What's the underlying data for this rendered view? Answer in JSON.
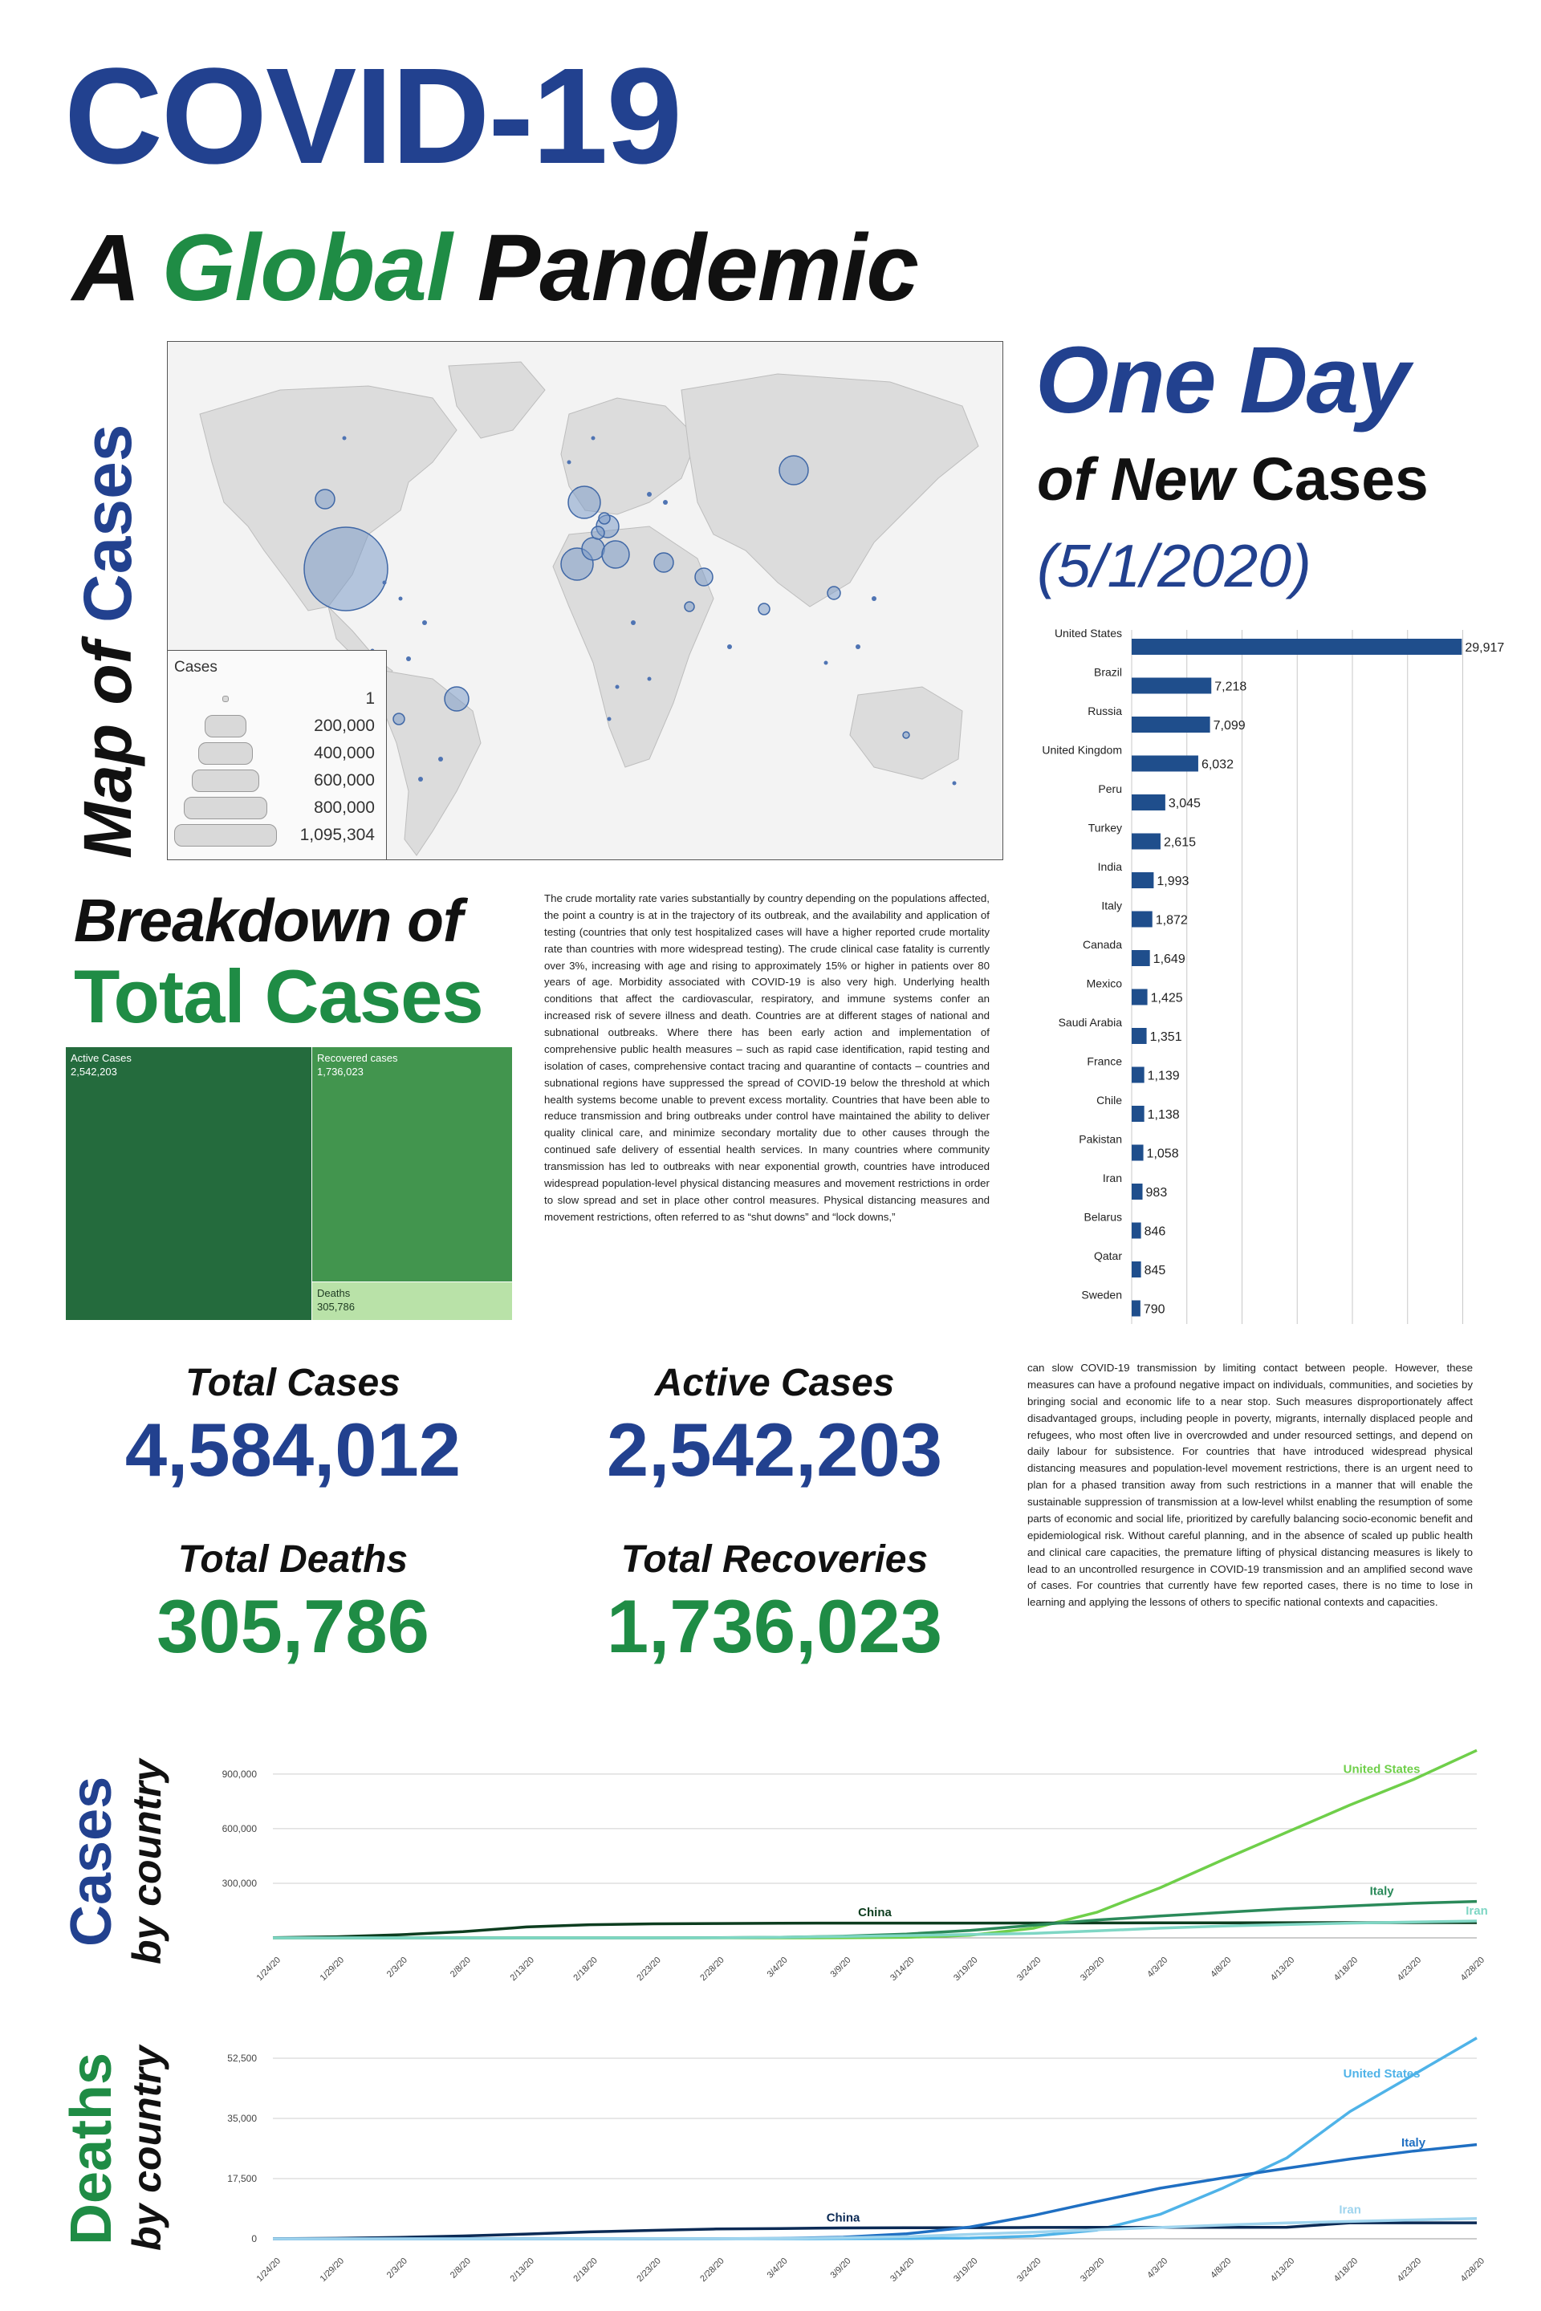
{
  "title": "COVID-19",
  "subtitle": {
    "part1": "A",
    "part2": "Global",
    "part3": "Pandemic"
  },
  "map_section": {
    "label_part1": "Map",
    "label_part2": "of",
    "label_part3": "Cases",
    "legend": {
      "title": "Cases",
      "entries": [
        "1",
        "200,000",
        "400,000",
        "600,000",
        "800,000",
        "1,095,304"
      ]
    }
  },
  "one_day": {
    "title": "One Day",
    "sub_italic": "of New",
    "sub_normal": "Cases",
    "date": "(5/1/2020)"
  },
  "breakdown": {
    "title_line1": "Breakdown of",
    "title_line2": "Total Cases",
    "treemap": [
      {
        "label": "Active Cases",
        "value": "2,542,203",
        "color": "#246b3d"
      },
      {
        "label": "Recovered cases",
        "value": "1,736,023",
        "color": "#42954e"
      },
      {
        "label": "Deaths",
        "value": "305,786",
        "color": "#b9e2a8"
      }
    ]
  },
  "stats": {
    "total_cases": {
      "label": "Total Cases",
      "value": "4,584,012"
    },
    "active_cases": {
      "label": "Active Cases",
      "value": "2,542,203"
    },
    "total_deaths": {
      "label": "Total Deaths",
      "value": "305,786"
    },
    "total_recoveries": {
      "label": "Total Recoveries",
      "value": "1,736,023"
    }
  },
  "paragraph1": "The crude mortality rate varies substantially by country depending on the populations affected, the point a country is at in the trajectory of its outbreak, and the availability and application of testing (countries that only test hospitalized cases will have a higher reported crude mortality rate than countries with more widespread testing). The crude clinical case fatality is currently over 3%, increasing with age and rising to approximately 15% or higher in patients over 80 years of age. Morbidity associated with COVID-19 is also very high. Underlying health conditions that affect the cardiovascular, respiratory, and immune systems confer an increased risk of severe illness and death. Countries are at different stages of national and subnational outbreaks. Where there has been early action and implementation of comprehensive public health measures – such as rapid case identification, rapid testing and isolation of cases, comprehensive contact tracing and quarantine of contacts – countries and subnational regions have suppressed the spread of COVID-19 below the threshold at which health systems become unable to prevent excess mortality. Countries that have been able to reduce transmission and bring outbreaks under control have maintained the ability to deliver quality clinical care, and minimize secondary mortality due to other causes through the continued safe delivery of essential health services. In many countries where community transmission has led to outbreaks with near exponential growth, countries have introduced widespread population-level physical distancing measures and movement restrictions in order to slow spread and set in place other control measures. Physical distancing measures and movement restrictions, often referred to as “shut downs” and “lock downs,”",
  "paragraph2": "can slow COVID-19 transmission by limiting contact between people. However, these measures can have a profound negative impact on individuals, communities, and societies by bringing social and economic life to a near stop. Such measures disproportionately affect disadvantaged groups, including people in poverty, migrants, internally displaced people and refugees, who most often live in overcrowded and under resourced settings, and depend on daily labour for subsistence. For countries that have introduced widespread physical distancing measures and population-level movement restrictions, there is an urgent need to plan for a phased transition away from such restrictions in a manner that will enable the sustainable suppression of transmission at a low-level whilst enabling the resumption of some parts of economic and social life, prioritized by carefully balancing socio-economic benefit and epidemiological risk. Without careful planning, and in the absence of scaled up public health and clinical care capacities, the premature lifting of physical distancing measures is likely to lead to an uncontrolled resurgence in COVID-19 transmission and an amplified second wave of cases. For countries that currently have few reported cases, there is no time to lose in learning and applying the lessons of others to specific national contexts and capacities.",
  "cases_section": {
    "label_main": "Cases",
    "label_sub": "by country"
  },
  "deaths_section": {
    "label_main": "Deaths",
    "label_sub": "by country"
  },
  "chart_data": [
    {
      "type": "bar",
      "orientation": "horizontal",
      "categories": [
        "United States",
        "Brazil",
        "Russia",
        "United Kingdom",
        "Peru",
        "Turkey",
        "India",
        "Italy",
        "Canada",
        "Mexico",
        "Saudi Arabia",
        "France",
        "Chile",
        "Pakistan",
        "Iran",
        "Belarus",
        "Qatar",
        "Sweden"
      ],
      "values": [
        29917,
        7218,
        7099,
        6032,
        3045,
        2615,
        1993,
        1872,
        1649,
        1425,
        1351,
        1139,
        1138,
        1058,
        983,
        846,
        845,
        790
      ],
      "value_labels": [
        "29,917",
        "7,218",
        "7,099",
        "6,032",
        "3,045",
        "2,615",
        "1,993",
        "1,872",
        "1,649",
        "1,425",
        "1,351",
        "1,139",
        "1,138",
        "1,058",
        "983",
        "846",
        "845",
        "790"
      ],
      "xlim": [
        0,
        32000
      ],
      "grid": true,
      "color": "#1f4e8c"
    },
    {
      "type": "line",
      "x": [
        "1/24/20",
        "1/29/20",
        "2/3/20",
        "2/8/20",
        "2/13/20",
        "2/18/20",
        "2/23/20",
        "2/28/20",
        "3/4/20",
        "3/9/20",
        "3/14/20",
        "3/19/20",
        "3/24/20",
        "3/29/20",
        "4/3/20",
        "4/8/20",
        "4/13/20",
        "4/18/20",
        "4/23/20",
        "4/28/20"
      ],
      "yticks": [
        300000,
        600000,
        900000
      ],
      "ytick_labels": [
        "300,000",
        "600,000",
        "900,000"
      ],
      "ylim": [
        0,
        1080000
      ],
      "grid": true,
      "series": [
        {
          "name": "United States",
          "color": "#6fcf4a",
          "values": [
            1,
            5,
            11,
            11,
            14,
            15,
            15,
            62,
            150,
            550,
            2700,
            14000,
            53000,
            140000,
            275000,
            430000,
            580000,
            730000,
            870000,
            1030000
          ]
        },
        {
          "name": "China",
          "color": "#0d3d1f",
          "values": [
            830,
            6000,
            17000,
            34000,
            60000,
            72500,
            77000,
            78900,
            80400,
            80900,
            81000,
            81200,
            81600,
            82100,
            82500,
            82800,
            83200,
            83800,
            83900,
            83900
          ]
        },
        {
          "name": "Italy",
          "color": "#2b8a5a",
          "values": [
            0,
            0,
            2,
            3,
            3,
            3,
            150,
            1100,
            3100,
            9200,
            21000,
            41000,
            69000,
            98000,
            120000,
            140000,
            160000,
            175000,
            190000,
            200000
          ]
        },
        {
          "name": "Iran",
          "color": "#7ed6c4",
          "values": [
            0,
            0,
            0,
            0,
            0,
            0,
            40,
            390,
            2900,
            8000,
            13000,
            18400,
            24800,
            38300,
            53200,
            64600,
            73300,
            80900,
            87000,
            92600
          ]
        }
      ]
    },
    {
      "type": "line",
      "x": [
        "1/24/20",
        "1/29/20",
        "2/3/20",
        "2/8/20",
        "2/13/20",
        "2/18/20",
        "2/23/20",
        "2/28/20",
        "3/4/20",
        "3/9/20",
        "3/14/20",
        "3/19/20",
        "3/24/20",
        "3/29/20",
        "4/3/20",
        "4/8/20",
        "4/13/20",
        "4/18/20",
        "4/23/20",
        "4/28/20"
      ],
      "yticks": [
        0,
        17500,
        35000,
        52500
      ],
      "ytick_labels": [
        "0",
        "17,500",
        "35,000",
        "52,500"
      ],
      "ylim": [
        0,
        63000
      ],
      "grid": true,
      "series": [
        {
          "name": "United States",
          "color": "#4fb3e8",
          "values": [
            0,
            0,
            0,
            0,
            0,
            0,
            0,
            0,
            11,
            22,
            57,
            200,
            800,
            2500,
            7100,
            14800,
            23500,
            37000,
            47700,
            58400
          ]
        },
        {
          "name": "China",
          "color": "#0b2a55",
          "values": [
            26,
            130,
            430,
            810,
            1370,
            2000,
            2450,
            2840,
            2980,
            3140,
            3200,
            3250,
            3280,
            3310,
            3330,
            3340,
            3350,
            4640,
            4640,
            4640
          ]
        },
        {
          "name": "Italy",
          "color": "#1f6fc2",
          "values": [
            0,
            0,
            0,
            0,
            0,
            0,
            3,
            29,
            107,
            463,
            1440,
            3400,
            6800,
            10800,
            14700,
            17700,
            20500,
            23200,
            25500,
            27400
          ]
        },
        {
          "name": "Iran",
          "color": "#9fd4ee",
          "values": [
            0,
            0,
            0,
            0,
            0,
            0,
            12,
            34,
            92,
            291,
            611,
            1280,
            1930,
            2640,
            3290,
            3990,
            4590,
            5050,
            5480,
            5870
          ]
        }
      ]
    }
  ]
}
